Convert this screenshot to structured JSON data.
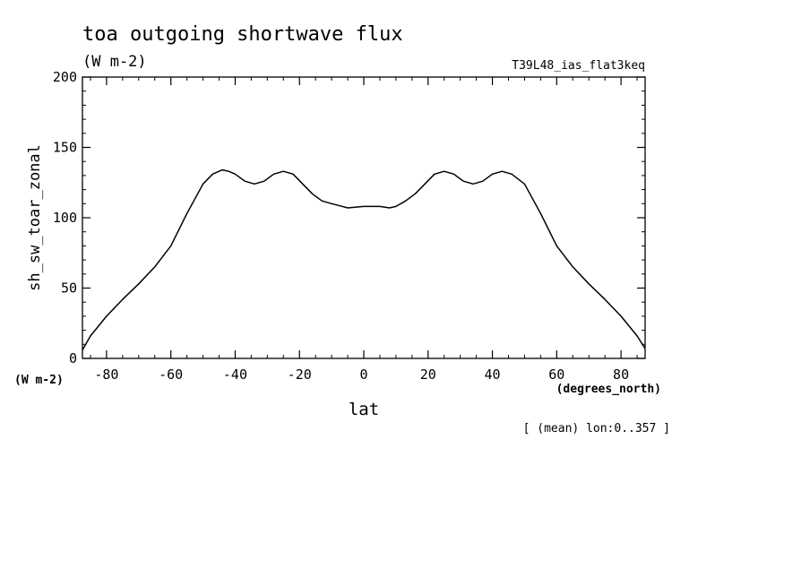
{
  "chart_data": {
    "type": "line",
    "title": "toa outgoing shortwave flux",
    "subtitle": "(W m-2)",
    "dataset_label": "T39L48_ias_flat3keq",
    "ylabel": "sh_sw_toar_zonal",
    "yunit": "(W m-2)",
    "xlabel": "lat",
    "xunit": "(degrees_north)",
    "footnote": "[ (mean) lon:0..357 ]",
    "xlim": [
      -87.5,
      87.5
    ],
    "ylim": [
      0,
      200
    ],
    "grid": false,
    "xticks": [
      -80,
      -60,
      -40,
      -20,
      0,
      20,
      40,
      60,
      80
    ],
    "xtick_labels": [
      "-80",
      "-60",
      "-40",
      "-20",
      "0",
      "20",
      "40",
      "60",
      "80"
    ],
    "yticks": [
      0,
      50,
      100,
      150,
      200
    ],
    "ytick_labels": [
      "0",
      "50",
      "100",
      "150",
      "200"
    ],
    "series": [
      {
        "x": [
          -87.5,
          -85,
          -80,
          -75,
          -70,
          -65,
          -60,
          -55,
          -50,
          -47,
          -44,
          -42,
          -40,
          -37,
          -34,
          -31,
          -28,
          -25,
          -22,
          -19,
          -16,
          -13,
          -10,
          -5,
          0,
          2,
          5,
          8,
          10,
          13,
          16,
          19,
          22,
          25,
          28,
          31,
          34,
          37,
          40,
          43,
          46,
          50,
          55,
          60,
          65,
          70,
          75,
          80,
          85,
          87.5
        ],
        "y": [
          6,
          16,
          30,
          42,
          53,
          65,
          80,
          103,
          124,
          131,
          134,
          133,
          131,
          126,
          124,
          126,
          131,
          133,
          131,
          124,
          117,
          112,
          110,
          107,
          108,
          108,
          108,
          107,
          108,
          112,
          117,
          124,
          131,
          133,
          131,
          126,
          124,
          126,
          131,
          133,
          131,
          124,
          103,
          80,
          65,
          53,
          42,
          30,
          16,
          7
        ]
      }
    ]
  }
}
